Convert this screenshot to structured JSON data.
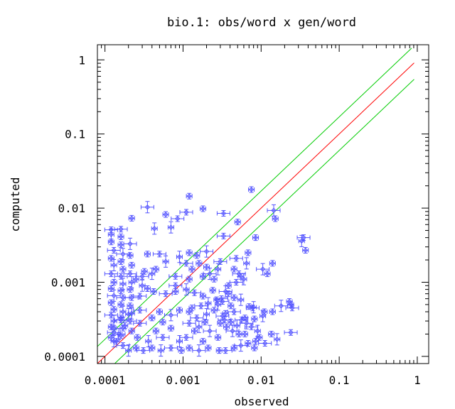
{
  "chart_data": {
    "type": "scatter",
    "title": "bio.1: obs/word x gen/word",
    "xlabel": "observed",
    "ylabel": "computed",
    "xscale": "log",
    "yscale": "log",
    "xlim": [
      8e-05,
      1.4
    ],
    "ylim": [
      8e-05,
      1.6
    ],
    "grid": false,
    "legend": "none",
    "x_ticks": [
      {
        "value": 0.0001,
        "label": "0.0001"
      },
      {
        "value": 0.001,
        "label": "0.001"
      },
      {
        "value": 0.01,
        "label": "0.01"
      },
      {
        "value": 0.1,
        "label": "0.1"
      },
      {
        "value": 1,
        "label": "1"
      }
    ],
    "y_ticks": [
      {
        "value": 0.0001,
        "label": "0.0001"
      },
      {
        "value": 0.001,
        "label": "0.001"
      },
      {
        "value": 0.01,
        "label": "0.01"
      },
      {
        "value": 0.1,
        "label": "0.1"
      },
      {
        "value": 1,
        "label": "1"
      }
    ],
    "reference_lines": [
      {
        "kind": "y=x",
        "factor": 1,
        "color": "#ff0000"
      },
      {
        "kind": "upper band",
        "factor": 1.7,
        "color": "#00cc00"
      },
      {
        "kind": "lower band",
        "factor": 0.6,
        "color": "#00cc00"
      }
    ],
    "colors": {
      "points": "#5555ff",
      "diagonal": "#ff0000",
      "band": "#00cc00",
      "axes": "#000000"
    },
    "points": [
      [
        0.00035,
        0.0103
      ],
      [
        0.00022,
        0.0073
      ],
      [
        0.0006,
        0.0082
      ],
      [
        0.00085,
        0.0072
      ],
      [
        0.00043,
        0.0053
      ],
      [
        0.0012,
        0.0145
      ],
      [
        0.0011,
        0.0088
      ],
      [
        0.0018,
        0.0098
      ],
      [
        0.0007,
        0.0055
      ],
      [
        0.0033,
        0.0085
      ],
      [
        0.0075,
        0.0178
      ],
      [
        0.005,
        0.0065
      ],
      [
        0.0145,
        0.0093
      ],
      [
        0.0152,
        0.0072
      ],
      [
        0.0085,
        0.004
      ],
      [
        0.035,
        0.004
      ],
      [
        0.033,
        0.0036
      ],
      [
        0.037,
        0.0027
      ],
      [
        0.0033,
        0.0042
      ],
      [
        0.0068,
        0.0025
      ],
      [
        0.0065,
        0.0018
      ],
      [
        0.0048,
        0.0021
      ],
      [
        0.0012,
        0.0025
      ],
      [
        0.0015,
        0.0023
      ],
      [
        0.002,
        0.0026
      ],
      [
        0.0016,
        0.0018
      ],
      [
        0.0013,
        0.0015
      ],
      [
        0.003,
        0.0019
      ],
      [
        0.0028,
        0.0015
      ],
      [
        0.0045,
        0.0015
      ],
      [
        0.0052,
        0.0013
      ],
      [
        0.0055,
        0.0012
      ],
      [
        0.006,
        0.0011
      ],
      [
        0.0048,
        0.001
      ],
      [
        0.0038,
        0.0009
      ],
      [
        0.0025,
        0.0011
      ],
      [
        0.0022,
        0.0013
      ],
      [
        0.0018,
        0.0012
      ],
      [
        0.0012,
        0.0011
      ],
      [
        0.0008,
        0.0012
      ],
      [
        0.0006,
        0.0019
      ],
      [
        0.00045,
        0.0015
      ],
      [
        0.0005,
        0.0024
      ],
      [
        0.00035,
        0.0024
      ],
      [
        0.0009,
        0.0022
      ],
      [
        0.0011,
        0.0018
      ],
      [
        0.002,
        0.0016
      ],
      [
        0.014,
        0.0018
      ],
      [
        0.0105,
        0.0015
      ],
      [
        0.012,
        0.0013
      ],
      [
        0.0038,
        0.0007
      ],
      [
        0.0032,
        0.00055
      ],
      [
        0.0028,
        0.0005
      ],
      [
        0.0041,
        0.00048
      ],
      [
        0.0045,
        0.0004
      ],
      [
        0.007,
        0.00047
      ],
      [
        0.008,
        0.00046
      ],
      [
        0.0078,
        0.00045
      ],
      [
        0.011,
        0.0004
      ],
      [
        0.014,
        0.0004
      ],
      [
        0.018,
        0.00048
      ],
      [
        0.023,
        0.00055
      ],
      [
        0.024,
        0.0005
      ],
      [
        0.025,
        0.00045
      ],
      [
        0.0105,
        0.00035
      ],
      [
        0.0035,
        0.00038
      ],
      [
        0.0032,
        0.00035
      ],
      [
        0.0025,
        0.00042
      ],
      [
        0.002,
        0.00037
      ],
      [
        0.0015,
        0.00033
      ],
      [
        0.0012,
        0.0004
      ],
      [
        0.0009,
        0.00042
      ],
      [
        0.0007,
        0.00036
      ],
      [
        0.0005,
        0.0004
      ],
      [
        0.0004,
        0.00033
      ],
      [
        0.00028,
        0.00042
      ],
      [
        0.0002,
        0.00037
      ],
      [
        0.00016,
        0.00033
      ],
      [
        0.0006,
        0.0007
      ],
      [
        0.0008,
        0.00075
      ],
      [
        0.0011,
        0.0008
      ],
      [
        0.0014,
        0.00072
      ],
      [
        0.0018,
        0.00065
      ],
      [
        0.0024,
        0.00078
      ],
      [
        0.0035,
        0.00075
      ],
      [
        0.00042,
        0.00075
      ],
      [
        0.00035,
        0.00082
      ],
      [
        0.00028,
        0.00065
      ],
      [
        0.0003,
        0.0009
      ],
      [
        0.00025,
        0.0011
      ],
      [
        0.0003,
        0.0012
      ],
      [
        0.00032,
        0.0014
      ],
      [
        0.0004,
        0.0013
      ],
      [
        0.0008,
        0.0009
      ],
      [
        0.003,
        0.00028
      ],
      [
        0.0036,
        0.00025
      ],
      [
        0.0043,
        0.00022
      ],
      [
        0.0052,
        0.0002
      ],
      [
        0.0062,
        0.0002
      ],
      [
        0.0075,
        0.00025
      ],
      [
        0.009,
        0.00022
      ],
      [
        0.0095,
        0.00018
      ],
      [
        0.0112,
        0.00015
      ],
      [
        0.0135,
        0.0002
      ],
      [
        0.016,
        0.00017
      ],
      [
        0.024,
        0.00021
      ],
      [
        0.0085,
        0.00016
      ],
      [
        0.0028,
        0.00018
      ],
      [
        0.0022,
        0.00022
      ],
      [
        0.0018,
        0.00016
      ],
      [
        0.0014,
        0.00022
      ],
      [
        0.0011,
        0.00018
      ],
      [
        0.0009,
        0.00016
      ],
      [
        0.0007,
        0.00024
      ],
      [
        0.00055,
        0.00018
      ],
      [
        0.00045,
        0.00022
      ],
      [
        0.00036,
        0.00016
      ],
      [
        0.00028,
        0.00028
      ],
      [
        0.00022,
        0.00022
      ],
      [
        0.00018,
        0.00026
      ],
      [
        0.00015,
        0.0002
      ],
      [
        0.00013,
        0.00024
      ],
      [
        0.00026,
        0.00018
      ],
      [
        0.0012,
        0.00028
      ],
      [
        0.0016,
        0.00025
      ],
      [
        0.0019,
        0.00029
      ],
      [
        0.0034,
        0.00031
      ],
      [
        0.0041,
        0.00029
      ],
      [
        0.0049,
        0.00026
      ],
      [
        0.0056,
        0.00031
      ],
      [
        0.0062,
        0.00033
      ],
      [
        0.00055,
        0.00029
      ],
      [
        0.0065,
        0.00028
      ],
      [
        0.0082,
        0.00032
      ],
      [
        0.0013,
        0.00045
      ],
      [
        0.0017,
        0.00048
      ],
      [
        0.0021,
        0.00052
      ],
      [
        0.0027,
        0.00058
      ],
      [
        0.0031,
        0.0006
      ],
      [
        0.0045,
        0.00062
      ],
      [
        0.0055,
        0.00058
      ],
      [
        0.0035,
        0.00012
      ],
      [
        0.0029,
        0.00012
      ],
      [
        0.0021,
        0.00013
      ],
      [
        0.0016,
        0.00012
      ],
      [
        0.0012,
        0.00013
      ],
      [
        0.00095,
        0.00012
      ],
      [
        0.0007,
        0.00013
      ],
      [
        0.00052,
        0.00012
      ],
      [
        0.0004,
        0.00013
      ],
      [
        0.00031,
        0.00012
      ],
      [
        0.00025,
        0.00013
      ],
      [
        0.0002,
        0.00012
      ],
      [
        0.00017,
        0.00014
      ],
      [
        0.00014,
        0.00016
      ],
      [
        0.0045,
        0.00013
      ],
      [
        0.0055,
        0.00014
      ],
      [
        0.0068,
        0.00015
      ],
      [
        0.0082,
        0.00013
      ],
      [
        0.00012,
        0.0051
      ],
      [
        0.00012,
        0.0044
      ],
      [
        0.00012,
        0.0035
      ],
      [
        0.00013,
        0.0027
      ],
      [
        0.00012,
        0.0021
      ],
      [
        0.00013,
        0.0017
      ],
      [
        0.00012,
        0.0013
      ],
      [
        0.00013,
        0.001
      ],
      [
        0.00012,
        0.00082
      ],
      [
        0.00013,
        0.00066
      ],
      [
        0.00012,
        0.00053
      ],
      [
        0.00013,
        0.00043
      ],
      [
        0.00012,
        0.00036
      ],
      [
        0.00013,
        0.0003
      ],
      [
        0.00012,
        0.00025
      ],
      [
        0.00013,
        0.00021
      ],
      [
        0.00012,
        0.00018
      ],
      [
        0.00013,
        0.00016
      ],
      [
        0.00016,
        0.0052
      ],
      [
        0.00016,
        0.0041
      ],
      [
        0.00016,
        0.0032
      ],
      [
        0.00017,
        0.0024
      ],
      [
        0.00016,
        0.0019
      ],
      [
        0.00017,
        0.0015
      ],
      [
        0.00016,
        0.0012
      ],
      [
        0.00017,
        0.00095
      ],
      [
        0.00016,
        0.00077
      ],
      [
        0.00017,
        0.00062
      ],
      [
        0.00016,
        0.0005
      ],
      [
        0.00017,
        0.0004
      ],
      [
        0.00016,
        0.00031
      ],
      [
        0.00017,
        0.00024
      ],
      [
        0.00016,
        0.00019
      ],
      [
        0.00021,
        0.0033
      ],
      [
        0.00021,
        0.0023
      ],
      [
        0.00022,
        0.0017
      ],
      [
        0.00021,
        0.0013
      ],
      [
        0.00022,
        0.001
      ],
      [
        0.00021,
        0.0008
      ],
      [
        0.00022,
        0.00062
      ],
      [
        0.00021,
        0.00048
      ],
      [
        0.00022,
        0.00038
      ],
      [
        0.00021,
        0.0003
      ]
    ]
  }
}
